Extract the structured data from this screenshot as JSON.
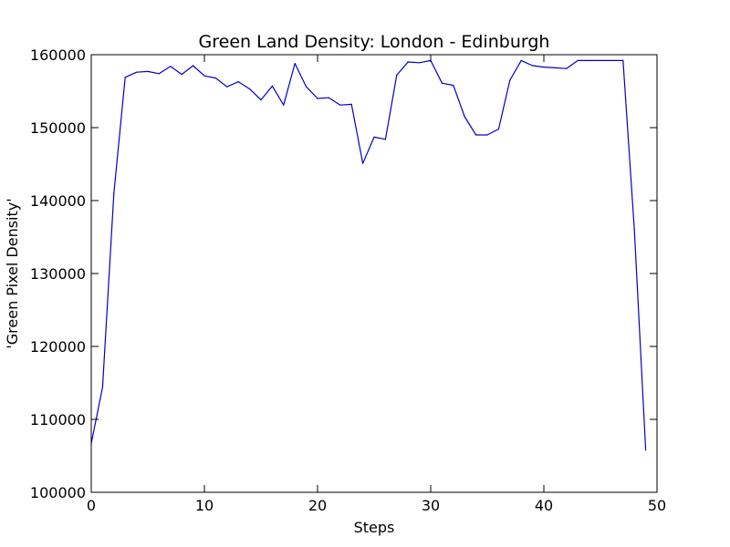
{
  "chart_data": {
    "type": "line",
    "title": "Green Land Density: London - Edinburgh",
    "xlabel": "Steps",
    "ylabel": "'Green Pixel Density'",
    "xlim": [
      0,
      50
    ],
    "ylim": [
      100000,
      160000
    ],
    "xticks": [
      0,
      10,
      20,
      30,
      40,
      50
    ],
    "yticks": [
      100000,
      110000,
      120000,
      130000,
      140000,
      150000,
      160000
    ],
    "grid": false,
    "series": [
      {
        "color": "#0000cc",
        "x": [
          0,
          1,
          2,
          3,
          4,
          5,
          6,
          7,
          8,
          9,
          10,
          11,
          12,
          13,
          14,
          15,
          16,
          17,
          18,
          19,
          20,
          21,
          22,
          23,
          24,
          25,
          26,
          27,
          28,
          29,
          30,
          31,
          32,
          33,
          34,
          35,
          36,
          37,
          38,
          39,
          40,
          41,
          42,
          43,
          44,
          45,
          46,
          47,
          48,
          49
        ],
        "y": [
          106700,
          114400,
          141000,
          156900,
          157600,
          157700,
          157400,
          158400,
          157300,
          158500,
          157100,
          156800,
          155600,
          156300,
          155300,
          153800,
          155700,
          153100,
          158800,
          155600,
          154000,
          154100,
          153100,
          153200,
          145100,
          148700,
          148400,
          157200,
          159000,
          158900,
          159200,
          156100,
          155800,
          151500,
          149000,
          149000,
          149800,
          156500,
          159200,
          158500,
          158300,
          158200,
          158100,
          159200,
          159200,
          159200,
          159200,
          159200,
          136000,
          105800
        ]
      }
    ]
  }
}
